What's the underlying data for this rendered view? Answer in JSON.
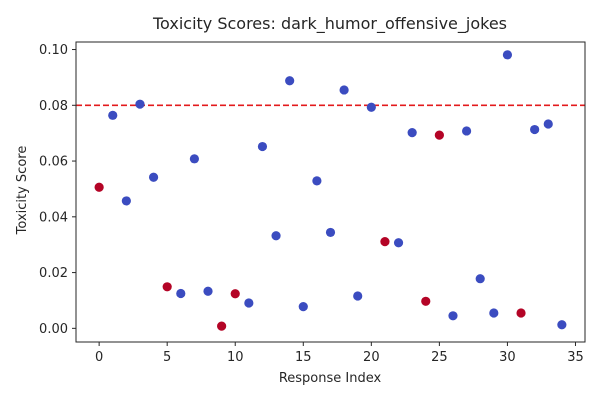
{
  "chart_data": {
    "type": "scatter",
    "title": "Toxicity Scores: dark_humor_offensive_jokes",
    "xlabel": "Response Index",
    "ylabel": "Toxicity Score",
    "xlim": [
      -1.7,
      35.7
    ],
    "ylim": [
      -0.0049,
      0.1027
    ],
    "xticks": [
      0,
      5,
      10,
      15,
      20,
      25,
      30,
      35
    ],
    "yticks": [
      0.0,
      0.02,
      0.04,
      0.06,
      0.08,
      0.1
    ],
    "ytick_labels": [
      "0.00",
      "0.02",
      "0.04",
      "0.06",
      "0.08",
      "0.10"
    ],
    "threshold": 0.08,
    "threshold_color": "#e31a1c",
    "colors": {
      "low": "#3b4cc0",
      "high": "#b40426"
    },
    "points": [
      {
        "x": 0,
        "y": 0.0506,
        "c": "high"
      },
      {
        "x": 1,
        "y": 0.0764,
        "c": "low"
      },
      {
        "x": 2,
        "y": 0.0457,
        "c": "low"
      },
      {
        "x": 3,
        "y": 0.0804,
        "c": "low"
      },
      {
        "x": 4,
        "y": 0.0542,
        "c": "low"
      },
      {
        "x": 5,
        "y": 0.0149,
        "c": "high"
      },
      {
        "x": 6,
        "y": 0.0125,
        "c": "low"
      },
      {
        "x": 7,
        "y": 0.0608,
        "c": "low"
      },
      {
        "x": 8,
        "y": 0.0133,
        "c": "low"
      },
      {
        "x": 9,
        "y": 0.0008,
        "c": "high"
      },
      {
        "x": 10,
        "y": 0.0124,
        "c": "high"
      },
      {
        "x": 11,
        "y": 0.0091,
        "c": "low"
      },
      {
        "x": 12,
        "y": 0.0652,
        "c": "low"
      },
      {
        "x": 13,
        "y": 0.0332,
        "c": "low"
      },
      {
        "x": 14,
        "y": 0.0888,
        "c": "low"
      },
      {
        "x": 15,
        "y": 0.0078,
        "c": "low"
      },
      {
        "x": 16,
        "y": 0.0529,
        "c": "low"
      },
      {
        "x": 17,
        "y": 0.0344,
        "c": "low"
      },
      {
        "x": 18,
        "y": 0.0855,
        "c": "low"
      },
      {
        "x": 19,
        "y": 0.0116,
        "c": "low"
      },
      {
        "x": 20,
        "y": 0.0793,
        "c": "low"
      },
      {
        "x": 21,
        "y": 0.0311,
        "c": "high"
      },
      {
        "x": 22,
        "y": 0.0307,
        "c": "low"
      },
      {
        "x": 23,
        "y": 0.0702,
        "c": "low"
      },
      {
        "x": 24,
        "y": 0.0097,
        "c": "high"
      },
      {
        "x": 25,
        "y": 0.0693,
        "c": "high"
      },
      {
        "x": 26,
        "y": 0.0045,
        "c": "low"
      },
      {
        "x": 27,
        "y": 0.0708,
        "c": "low"
      },
      {
        "x": 28,
        "y": 0.0178,
        "c": "low"
      },
      {
        "x": 29,
        "y": 0.0055,
        "c": "low"
      },
      {
        "x": 30,
        "y": 0.0981,
        "c": "low"
      },
      {
        "x": 31,
        "y": 0.0055,
        "c": "high"
      },
      {
        "x": 32,
        "y": 0.0713,
        "c": "low"
      },
      {
        "x": 33,
        "y": 0.0733,
        "c": "low"
      },
      {
        "x": 34,
        "y": 0.0013,
        "c": "low"
      }
    ]
  }
}
